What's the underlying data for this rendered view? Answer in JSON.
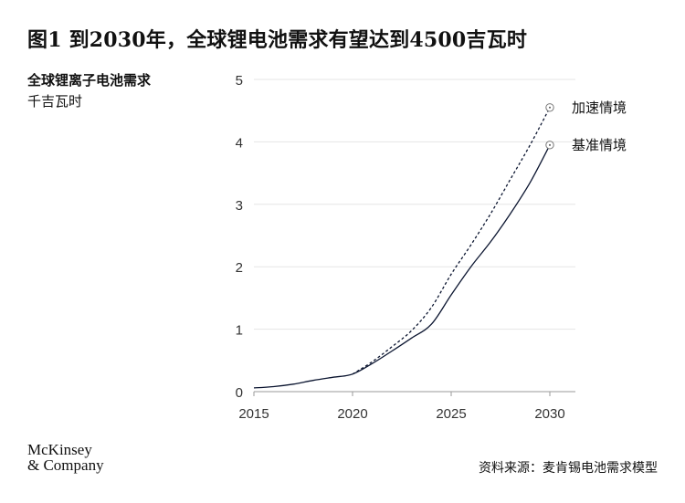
{
  "title": "图1 到2030年，全球锂电池需求有望达到4500吉瓦时",
  "source": "资料来源：麦肯锡电池需求模型",
  "logo": {
    "line1": "McKinsey",
    "line2": "& Company"
  },
  "colors": {
    "line": "#0b1530",
    "grid": "#e6e6e6",
    "axis": "#999999",
    "text": "#333333"
  },
  "chart_data": {
    "type": "line",
    "ylabel": "全球锂离子电池需求",
    "yunit": "千吉瓦时",
    "ylim": [
      0,
      5
    ],
    "xlim": [
      2015,
      2030
    ],
    "yticks": [
      0,
      1,
      2,
      3,
      4,
      5
    ],
    "xticks": [
      2015,
      2020,
      2025,
      2030
    ],
    "grid": true,
    "series": [
      {
        "name": "基准情境",
        "style": "solid",
        "x": [
          2015,
          2016,
          2017,
          2018,
          2019,
          2020,
          2021,
          2022,
          2023,
          2024,
          2025,
          2026,
          2027,
          2028,
          2029,
          2030
        ],
        "y": [
          0.06,
          0.08,
          0.12,
          0.18,
          0.23,
          0.28,
          0.45,
          0.65,
          0.86,
          1.08,
          1.55,
          2.0,
          2.4,
          2.85,
          3.35,
          3.95
        ]
      },
      {
        "name": "加速情境",
        "style": "dashed",
        "x": [
          2020,
          2021,
          2022,
          2023,
          2024,
          2025,
          2026,
          2027,
          2028,
          2029,
          2030
        ],
        "y": [
          0.28,
          0.48,
          0.72,
          0.98,
          1.35,
          1.88,
          2.35,
          2.85,
          3.4,
          3.95,
          4.55
        ]
      }
    ]
  }
}
